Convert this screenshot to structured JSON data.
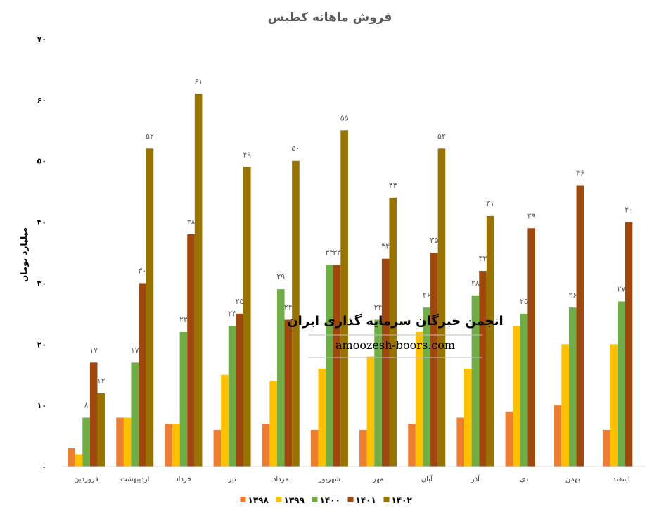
{
  "chart_data": {
    "type": "bar",
    "title": "فروش ماهانه کطبس",
    "ylabel": "میلیارد تومان",
    "ylim": [
      0,
      70
    ],
    "yticks": [
      "۰",
      "۱۰",
      "۲۰",
      "۳۰",
      "۴۰",
      "۵۰",
      "۶۰",
      "۷۰"
    ],
    "grid": false,
    "legend_position": "bottom",
    "categories": [
      "فروردین",
      "اردیبهشت",
      "خرداد",
      "تیر",
      "مرداد",
      "شهریور",
      "مهر",
      "آبان",
      "آذر",
      "دی",
      "بهمن",
      "اسفند"
    ],
    "series": [
      {
        "name": "۱۳۹۸",
        "color": "#ED7D31",
        "values": [
          3,
          8,
          7,
          6,
          7,
          6,
          6,
          7,
          8,
          9,
          10,
          6
        ],
        "labels": [
          null,
          null,
          null,
          null,
          null,
          null,
          null,
          null,
          null,
          null,
          null,
          null
        ]
      },
      {
        "name": "۱۳۹۹",
        "color": "#FFC000",
        "values": [
          2,
          8,
          7,
          15,
          14,
          16,
          18,
          22,
          16,
          23,
          20,
          20
        ],
        "labels": [
          null,
          null,
          null,
          null,
          null,
          null,
          null,
          null,
          null,
          null,
          null,
          null
        ]
      },
      {
        "name": "۱۴۰۰",
        "color": "#70AD47",
        "values": [
          8,
          17,
          22,
          23,
          29,
          33,
          24,
          26,
          28,
          25,
          26,
          27
        ],
        "labels": [
          "۸",
          "۱۷",
          "۲۲",
          "۲۳",
          "۲۹",
          "۳۳",
          "۲۴",
          "۲۶",
          "۲۸",
          "۲۵",
          "۲۶",
          "۲۷"
        ]
      },
      {
        "name": "۱۴۰۱",
        "color": "#9E480E",
        "values": [
          17,
          30,
          38,
          25,
          24,
          33,
          34,
          35,
          32,
          39,
          46,
          40
        ],
        "labels": [
          "۱۷",
          "۳۰",
          "۳۸",
          "۲۵",
          "۲۴",
          "۳۳",
          "۳۴",
          "۳۵",
          "۳۲",
          "۳۹",
          "۴۶",
          "۴۰"
        ]
      },
      {
        "name": "۱۴۰۲",
        "color": "#997300",
        "values": [
          12,
          52,
          61,
          49,
          50,
          55,
          44,
          52,
          41,
          null,
          null,
          null
        ],
        "labels": [
          "۱۲",
          "۵۲",
          "۶۱",
          "۴۹",
          "۵۰",
          "۵۵",
          "۴۴",
          "۵۲",
          "۴۱",
          null,
          null,
          null
        ]
      }
    ]
  },
  "watermark": {
    "title": "انجمن خبرگان سرمایه گذاری ایران",
    "url": "amoozesh-boors.com"
  }
}
